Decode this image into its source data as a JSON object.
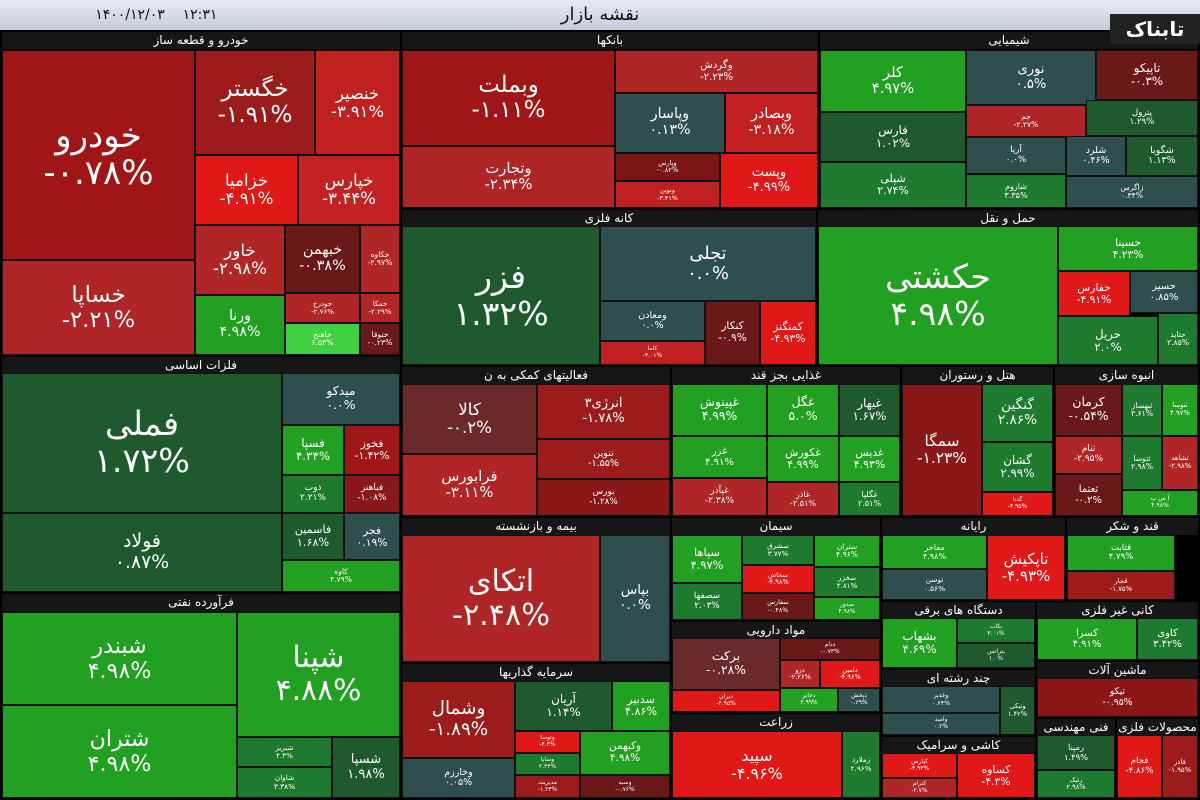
{
  "header": {
    "title": "نقشه بازار",
    "time": "۱۲:۳۱",
    "date": "۱۴۰۰/۱۲/۰۳",
    "logo": "تابناک"
  },
  "sectors": [
    {
      "title": "خودرو و قطعه ساز",
      "tiles": [
        {
          "name": "خودرو",
          "change": "-۰.۷۸%"
        },
        {
          "name": "خساپا",
          "change": "-۲.۲۱%"
        },
        {
          "name": "خگستر",
          "change": "-۱.۹۱%"
        },
        {
          "name": "خنصیر",
          "change": "-۳.۹۱%"
        },
        {
          "name": "خزامیا",
          "change": "-۴.۹۱%"
        },
        {
          "name": "خپارس",
          "change": "-۳.۴۴%"
        },
        {
          "name": "خاور",
          "change": "-۲.۹۸%"
        },
        {
          "name": "خبهمن",
          "change": "-۰.۳۸%"
        },
        {
          "name": "خکاوه",
          "change": "-۲.۹۷%"
        },
        {
          "name": "ورنا",
          "change": "۴.۹۸%"
        },
        {
          "name": "خودرخ",
          "change": "-۲.۷۶%"
        },
        {
          "name": "خاهنج",
          "change": "۶.۵۴%"
        },
        {
          "name": "خمکا",
          "change": "-۲.۲۹%"
        },
        {
          "name": "ختوقا",
          "change": "-۰.۲۳%"
        }
      ]
    },
    {
      "title": "بانکها",
      "tiles": [
        {
          "name": "وبملت",
          "change": "-۱.۱۱%"
        },
        {
          "name": "وتجارت",
          "change": "-۲.۳۴%"
        },
        {
          "name": "وگردش",
          "change": "-۲.۲۳%"
        },
        {
          "name": "وپاسار",
          "change": "۰.۱۳%"
        },
        {
          "name": "وبصادر",
          "change": "-۳.۱۸%"
        },
        {
          "name": "وپارس",
          "change": "-۰.۸۲%"
        },
        {
          "name": "ونوین",
          "change": "-۳.۴۱%"
        },
        {
          "name": "وپست",
          "change": "-۴.۹۹%"
        }
      ]
    },
    {
      "title": "شیمیایی",
      "tiles": [
        {
          "name": "کلر",
          "change": "۴.۹۷%"
        },
        {
          "name": "فارس",
          "change": "۱.۰۲%"
        },
        {
          "name": "شپلی",
          "change": "۲.۷۴%"
        },
        {
          "name": "نوری",
          "change": "۰.۵%"
        },
        {
          "name": "تاپیکو",
          "change": "-۰.۳%"
        },
        {
          "name": "جم",
          "change": "-۲.۲۷%"
        },
        {
          "name": "پترول",
          "change": "۱.۲۹%"
        },
        {
          "name": "آریا",
          "change": "۰.۰%"
        },
        {
          "name": "شلرد",
          "change": "۰.۴۶%"
        },
        {
          "name": "شگویا",
          "change": "۱.۱۳%"
        },
        {
          "name": "شاروم",
          "change": "۳.۳۵%"
        },
        {
          "name": "زاگرس",
          "change": "۰.۳۴%"
        }
      ]
    },
    {
      "title": "کانه فلزی",
      "tiles": [
        {
          "name": "فزر",
          "change": "۱.۳۲%"
        },
        {
          "name": "تجلی",
          "change": "۰.۰%"
        },
        {
          "name": "ومعادن",
          "change": "۰.۰%"
        },
        {
          "name": "کاما",
          "change": "-۴.۰۱%"
        },
        {
          "name": "کنکار",
          "change": "-۰.۹%"
        },
        {
          "name": "کمنگنز",
          "change": "-۴.۹۳%"
        }
      ]
    },
    {
      "title": "حمل و نقل",
      "tiles": [
        {
          "name": "حکشتی",
          "change": "۴.۹۸%"
        },
        {
          "name": "حسینا",
          "change": "۴.۲۳%"
        },
        {
          "name": "حفارس",
          "change": "-۴.۹۱%"
        },
        {
          "name": "حسیر",
          "change": "۰.۸۵%"
        },
        {
          "name": "حریل",
          "change": "۲.۰%"
        },
        {
          "name": "حتاید",
          "change": "۲.۸۵%"
        }
      ]
    },
    {
      "title": "فلزات اساسی",
      "tiles": [
        {
          "name": "فملی",
          "change": "۱.۷۲%"
        },
        {
          "name": "فولاد",
          "change": "۰.۸۷%"
        },
        {
          "name": "میدکو",
          "change": "۰.۰%"
        },
        {
          "name": "فسپا",
          "change": "۴.۳۴%"
        },
        {
          "name": "فخوز",
          "change": "-۱.۴۲%"
        },
        {
          "name": "ذوب",
          "change": "۲.۲۱%"
        },
        {
          "name": "فباهنر",
          "change": "-۱.۰۸%"
        },
        {
          "name": "فاسمین",
          "change": "۱.۶۸%"
        },
        {
          "name": "فجر",
          "change": "۰.۱۹%"
        },
        {
          "name": "کاوه",
          "change": "۴.۷۹%"
        }
      ]
    },
    {
      "title": "فرآورده نفتی",
      "tiles": [
        {
          "name": "شبندر",
          "change": "۴.۹۸%"
        },
        {
          "name": "شتران",
          "change": "۴.۹۸%"
        },
        {
          "name": "شپنا",
          "change": "۴.۸۸%"
        },
        {
          "name": "شبریز",
          "change": "۴.۳%"
        },
        {
          "name": "شاوان",
          "change": "۳.۳۸%"
        },
        {
          "name": "شسپا",
          "change": "۱.۹۸%"
        }
      ]
    },
    {
      "title": "فعالیتهای کمکی به ن",
      "tiles": [
        {
          "name": "کالا",
          "change": "-۰.۲%"
        },
        {
          "name": "فرابورس",
          "change": "-۳.۱۱%"
        },
        {
          "name": "انرژی۳",
          "change": "-۱.۷۸%"
        },
        {
          "name": "تنوین",
          "change": "-۱.۵۵%"
        },
        {
          "name": "بورس",
          "change": "-۱.۲۸%"
        }
      ]
    },
    {
      "title": "غذایی بجز قند",
      "tiles": [
        {
          "name": "غپینوش",
          "change": "۴.۹۹%"
        },
        {
          "name": "غگل",
          "change": "۵.۰%"
        },
        {
          "name": "غبهار",
          "change": "۱.۶۷%"
        },
        {
          "name": "غزر",
          "change": "۴.۹۱%"
        },
        {
          "name": "غکورش",
          "change": "۴.۹۹%"
        },
        {
          "name": "غدیس",
          "change": "۴.۹۳%"
        },
        {
          "name": "غپآذر",
          "change": "-۲.۳۸%"
        },
        {
          "name": "غاذر",
          "change": "-۲.۵۱%"
        },
        {
          "name": "غگلپا",
          "change": "۲.۵۱%"
        }
      ]
    },
    {
      "title": "هتل و رستوران",
      "tiles": [
        {
          "name": "سمگا",
          "change": "-۱.۲۳%"
        },
        {
          "name": "گنگین",
          "change": "۲.۸۶%"
        },
        {
          "name": "گشان",
          "change": "۲.۹۹%"
        },
        {
          "name": "گدنا",
          "change": "-۴.۹۵%"
        }
      ]
    },
    {
      "title": "انبوه سازی",
      "tiles": [
        {
          "name": "کرمان",
          "change": "-۰.۵۴%"
        },
        {
          "name": "ثبهساز",
          "change": "۳.۶۱%"
        },
        {
          "name": "ثنوسا",
          "change": "۴.۹۷%"
        },
        {
          "name": "ثنام",
          "change": "-۲.۹۵%"
        },
        {
          "name": "ثتوسا",
          "change": "۲.۹۸%"
        },
        {
          "name": "ثشاهد",
          "change": "-۲.۹۸%"
        },
        {
          "name": "ثعتما",
          "change": "-۰.۲%"
        },
        {
          "name": "آ س پ",
          "change": "۴.۹۸%"
        }
      ]
    },
    {
      "title": "بیمه و بازنشسته",
      "tiles": [
        {
          "name": "اتکای",
          "change": "-۲.۴۸%"
        },
        {
          "name": "بپاس",
          "change": "۰.۰%"
        }
      ]
    },
    {
      "title": "سرمایه گذاریها",
      "tiles": [
        {
          "name": "وشمال",
          "change": "-۱.۸۹%"
        },
        {
          "name": "وخارزم",
          "change": "۰.۰۵%"
        },
        {
          "name": "آریان",
          "change": "۱.۱۴%"
        },
        {
          "name": "سدبیر",
          "change": "۴.۸۶%"
        },
        {
          "name": "وتوسا",
          "change": "-۴.۳%"
        },
        {
          "name": "وسایا",
          "change": "۲.۳۳%"
        },
        {
          "name": "مدیریت",
          "change": "-۱.۲۳%"
        },
        {
          "name": "وکبهمن",
          "change": "۴.۹۸%"
        },
        {
          "name": "وسبه",
          "change": "-۰.۷۶%"
        }
      ]
    },
    {
      "title": "سیمان",
      "tiles": [
        {
          "name": "سپاها",
          "change": "۴.۹۷%"
        },
        {
          "name": "سشرق",
          "change": "۳.۷۷%"
        },
        {
          "name": "ستران",
          "change": "۴.۹۶%"
        },
        {
          "name": "سصفها",
          "change": "۲.۰۳%"
        },
        {
          "name": "سخاش",
          "change": "-۴.۹۸%"
        },
        {
          "name": "سخزر",
          "change": "۳.۸۱%"
        },
        {
          "name": "سفارس",
          "change": "-۰.۴۸%"
        },
        {
          "name": "سدور",
          "change": "۴.۹۸%"
        }
      ]
    },
    {
      "title": "مواد دارویی",
      "tiles": [
        {
          "name": "برکت",
          "change": "-۰.۲۸%"
        },
        {
          "name": "دیران",
          "change": "-۴.۹۵%"
        },
        {
          "name": "ددام",
          "change": "-۰.۷۳%"
        },
        {
          "name": "دزو",
          "change": "-۲.۲۶%"
        },
        {
          "name": "دامین",
          "change": "-۴.۹۶%"
        },
        {
          "name": "دجابر",
          "change": "۴.۹۹%"
        },
        {
          "name": "دپخش",
          "change": "۰.۶۹%"
        }
      ]
    },
    {
      "title": "زراعت",
      "tiles": [
        {
          "name": "سپید",
          "change": "-۴.۹۶%"
        },
        {
          "name": "زملارد",
          "change": "۲.۹۶%"
        }
      ]
    },
    {
      "title": "رایانه",
      "tiles": [
        {
          "name": "مفاخر",
          "change": "۴.۹۸%"
        },
        {
          "name": "تاپکیش",
          "change": "-۴.۹۳%"
        },
        {
          "name": "توسن",
          "change": "۰.۵۶%"
        }
      ]
    },
    {
      "title": "قند و شکر",
      "tiles": [
        {
          "name": "قثابت",
          "change": "۴.۷۹%"
        },
        {
          "name": "قجار",
          "change": "-۱.۷۵%"
        }
      ]
    },
    {
      "title": "دستگاه های برقی",
      "tiles": [
        {
          "name": "بشهاب",
          "change": "۴.۶۹%"
        },
        {
          "name": "بکاب",
          "change": "۳.۰۱%"
        },
        {
          "name": "بترانس",
          "change": "۱.۰%"
        }
      ]
    },
    {
      "title": "کانی غیر فلزی",
      "tiles": [
        {
          "name": "کسرا",
          "change": "۴.۹۱%"
        },
        {
          "name": "کاوی",
          "change": "۳.۴۲%"
        }
      ]
    },
    {
      "title": "چند رشته ای",
      "tiles": [
        {
          "name": "وغدیر",
          "change": "۰.۶۴%"
        },
        {
          "name": "وامید",
          "change": "۰.۲%"
        },
        {
          "name": "ونیکی",
          "change": "۱.۴۲%"
        }
      ]
    },
    {
      "title": "ماشین آلات",
      "tiles": [
        {
          "name": "تیکو",
          "change": "-۰.۹۵%"
        }
      ]
    },
    {
      "title": "کاشی و سرامیک",
      "tiles": [
        {
          "name": "کیارس",
          "change": "-۴.۹۳%"
        },
        {
          "name": "کساوه",
          "change": "-۴.۳%"
        },
        {
          "name": "کترام",
          "change": "-۲.۷%"
        }
      ]
    },
    {
      "title": "فنی مهندسی",
      "tiles": [
        {
          "name": "رمپنا",
          "change": "۱.۴۹%"
        },
        {
          "name": "رتیک",
          "change": "۲.۹۸%"
        }
      ]
    },
    {
      "title": "محصولات فلزی",
      "tiles": [
        {
          "name": "فجام",
          "change": "-۴.۸۶%"
        },
        {
          "name": "فاذر",
          "change": "-۱.۹۵%"
        }
      ]
    }
  ]
}
